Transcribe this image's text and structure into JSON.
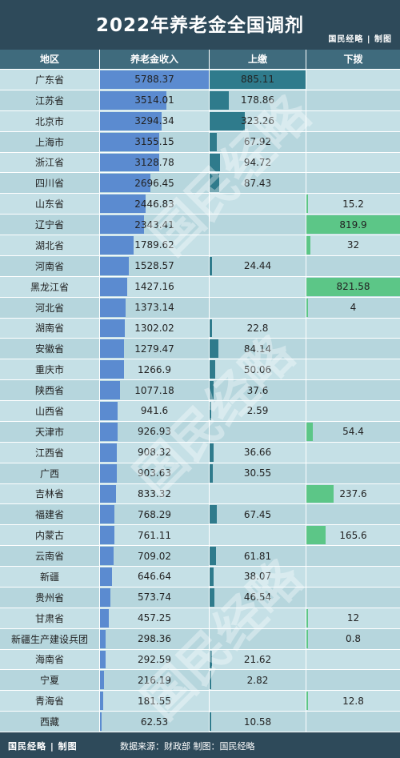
{
  "title": "2022年养老金全国调剂",
  "brand": "国民经略 | 制图",
  "footer": {
    "brand": "国民经略 | 制图",
    "source": "数据来源：财政部   制图：国民经略"
  },
  "watermark": "国民经略",
  "colors": {
    "title_bg": "#2e4a5a",
    "header_bg": "#3f6b7d",
    "row_bg": "#c5e0e6",
    "row_alt_bg": "#b6d6dd",
    "income_bar": "#5b8bd0",
    "payin_bar": "#2f7b8c",
    "payout_bar": "#5cc687"
  },
  "chart_data": {
    "type": "table",
    "columns": [
      "地区",
      "养老金收入",
      "上缴",
      "下拨"
    ],
    "rows": [
      {
        "region": "广东省",
        "income": 5788.37,
        "payin": 885.11,
        "payout": null
      },
      {
        "region": "江苏省",
        "income": 3514.01,
        "payin": 178.86,
        "payout": null
      },
      {
        "region": "北京市",
        "income": 3294.34,
        "payin": 323.26,
        "payout": null
      },
      {
        "region": "上海市",
        "income": 3155.15,
        "payin": 67.92,
        "payout": null
      },
      {
        "region": "浙江省",
        "income": 3128.78,
        "payin": 94.72,
        "payout": null
      },
      {
        "region": "四川省",
        "income": 2696.45,
        "payin": 87.43,
        "payout": null
      },
      {
        "region": "山东省",
        "income": 2446.83,
        "payin": null,
        "payout": 15.2
      },
      {
        "region": "辽宁省",
        "income": 2343.41,
        "payin": null,
        "payout": 819.9
      },
      {
        "region": "湖北省",
        "income": 1789.62,
        "payin": null,
        "payout": 32
      },
      {
        "region": "河南省",
        "income": 1528.57,
        "payin": 24.44,
        "payout": null
      },
      {
        "region": "黑龙江省",
        "income": 1427.16,
        "payin": null,
        "payout": 821.58
      },
      {
        "region": "河北省",
        "income": 1373.14,
        "payin": null,
        "payout": 4
      },
      {
        "region": "湖南省",
        "income": 1302.02,
        "payin": 22.8,
        "payout": null
      },
      {
        "region": "安徽省",
        "income": 1279.47,
        "payin": 84.14,
        "payout": null
      },
      {
        "region": "重庆市",
        "income": 1266.9,
        "payin": 50.06,
        "payout": null
      },
      {
        "region": "陕西省",
        "income": 1077.18,
        "payin": 37.6,
        "payout": null
      },
      {
        "region": "山西省",
        "income": 941.6,
        "payin": 2.59,
        "payout": null
      },
      {
        "region": "天津市",
        "income": 926.93,
        "payin": null,
        "payout": 54.4
      },
      {
        "region": "江西省",
        "income": 908.32,
        "payin": 36.66,
        "payout": null
      },
      {
        "region": "广西",
        "income": 903.63,
        "payin": 30.55,
        "payout": null
      },
      {
        "region": "吉林省",
        "income": 833.32,
        "payin": null,
        "payout": 237.6
      },
      {
        "region": "福建省",
        "income": 768.29,
        "payin": 67.45,
        "payout": null
      },
      {
        "region": "内蒙古",
        "income": 761.11,
        "payin": null,
        "payout": 165.6
      },
      {
        "region": "云南省",
        "income": 709.02,
        "payin": 61.81,
        "payout": null
      },
      {
        "region": "新疆",
        "income": 646.64,
        "payin": 38.07,
        "payout": null
      },
      {
        "region": "贵州省",
        "income": 573.74,
        "payin": 46.54,
        "payout": null
      },
      {
        "region": "甘肃省",
        "income": 457.25,
        "payin": null,
        "payout": 12
      },
      {
        "region": "新疆生产建设兵团",
        "income": 298.36,
        "payin": null,
        "payout": 0.8
      },
      {
        "region": "海南省",
        "income": 292.59,
        "payin": 21.62,
        "payout": null
      },
      {
        "region": "宁夏",
        "income": 216.19,
        "payin": 2.82,
        "payout": null
      },
      {
        "region": "青海省",
        "income": 181.55,
        "payin": null,
        "payout": 12.8
      },
      {
        "region": "西藏",
        "income": 62.53,
        "payin": 10.58,
        "payout": null
      }
    ]
  }
}
